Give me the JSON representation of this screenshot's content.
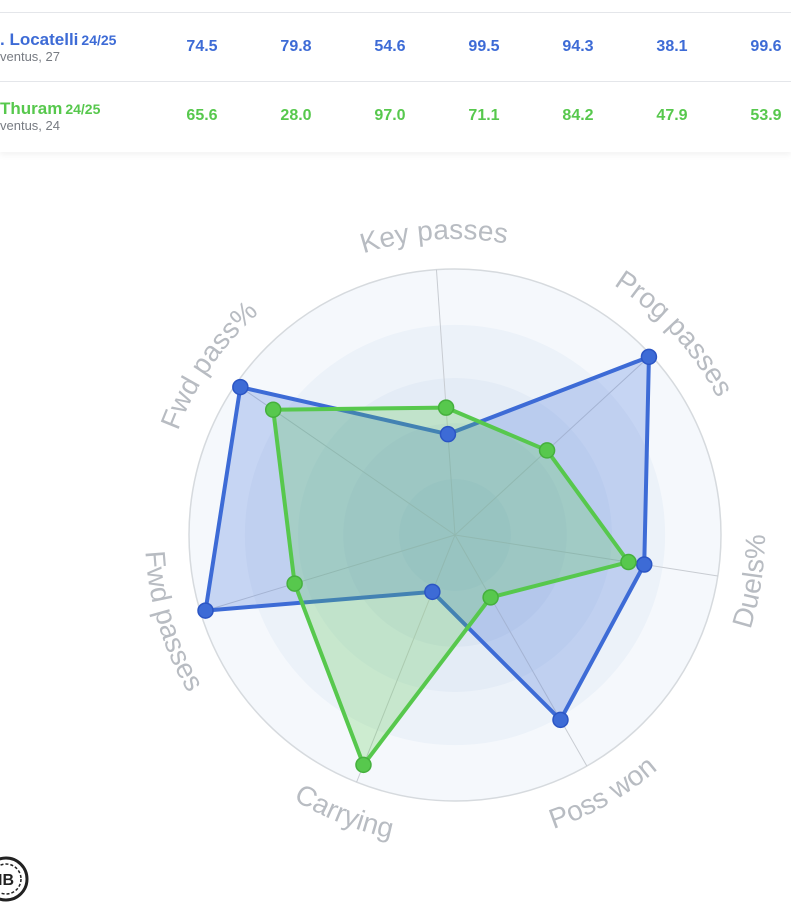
{
  "players": [
    {
      "name": ". Locatelli",
      "season": "24/25",
      "sub": "ventus, 27",
      "values": [
        "74.5",
        "79.8",
        "54.6",
        "99.5",
        "94.3",
        "38.1",
        "99.6"
      ],
      "color": "#3d6bd6"
    },
    {
      "name": " Thuram",
      "season": "24/25",
      "sub": "ventus, 24",
      "values": [
        "65.6",
        "28.0",
        "97.0",
        "71.1",
        "84.2",
        "47.9",
        "53.9"
      ],
      "color": "#57c84d"
    }
  ],
  "chart_data": {
    "type": "radar",
    "axes": [
      "Key passes",
      "Prog passes",
      "Duels%",
      "Poss won",
      "Carrying",
      "Fwd passes",
      "Fwd pass%"
    ],
    "range": [
      0,
      100
    ],
    "grid": true,
    "series": [
      {
        "name": ". Locatelli",
        "color": "#3d6bd6",
        "values": [
          38,
          99,
          72,
          80,
          23,
          98,
          98
        ]
      },
      {
        "name": " Thuram",
        "color": "#57c84d",
        "values": [
          48,
          47,
          66,
          27,
          93,
          63,
          83
        ]
      }
    ]
  },
  "logo": {
    "icon": "ib-logo-icon",
    "text": "IB"
  }
}
